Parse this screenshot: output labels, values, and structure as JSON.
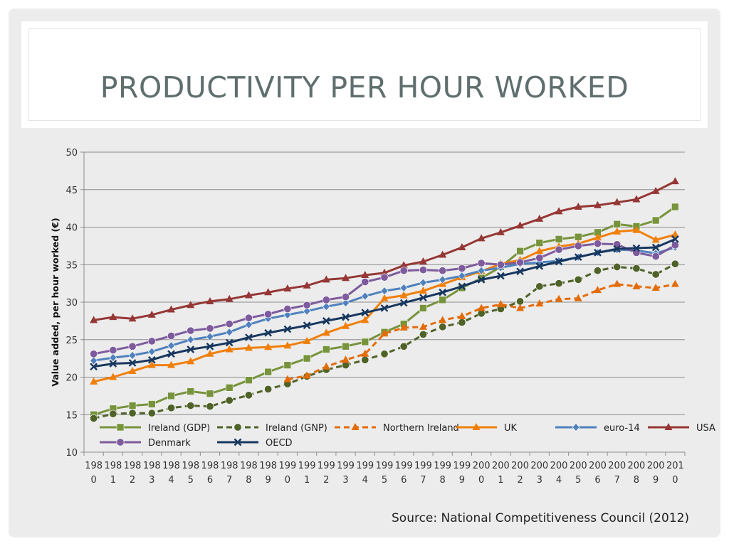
{
  "slide": {
    "title": "PRODUCTIVITY PER HOUR WORKED",
    "source": "Source: National Competitiveness Council (2012)"
  },
  "chart_data": {
    "type": "line",
    "title": "",
    "xlabel": "",
    "ylabel": "Value added, per hour worked (€)",
    "ylim": [
      10,
      50
    ],
    "yticks": [
      10,
      15,
      20,
      25,
      30,
      35,
      40,
      45,
      50
    ],
    "grid": true,
    "legend_position": "bottom-inside",
    "categories": [
      "1980",
      "1981",
      "1982",
      "1983",
      "1984",
      "1985",
      "1986",
      "1987",
      "1988",
      "1989",
      "1990",
      "1991",
      "1992",
      "1993",
      "1994",
      "1995",
      "1996",
      "1997",
      "1998",
      "1999",
      "2000",
      "2001",
      "2002",
      "2003",
      "2004",
      "2005",
      "2006",
      "2007",
      "2008",
      "2009",
      "2010"
    ],
    "series": [
      {
        "name": "Ireland (GDP)",
        "color": "#77933c",
        "dash": "solid",
        "marker": "square",
        "values": [
          15.0,
          15.8,
          16.2,
          16.4,
          17.5,
          18.1,
          17.8,
          18.6,
          19.6,
          20.7,
          21.6,
          22.5,
          23.7,
          24.1,
          24.7,
          26.0,
          27.1,
          29.2,
          30.3,
          31.9,
          33.2,
          34.7,
          36.8,
          37.9,
          38.4,
          38.7,
          39.3,
          40.4,
          40.1,
          40.9,
          42.7
        ]
      },
      {
        "name": "Ireland (GNP)",
        "color": "#4f6228",
        "dash": "dashed",
        "marker": "circle",
        "values": [
          14.5,
          15.1,
          15.2,
          15.2,
          15.9,
          16.2,
          16.1,
          16.9,
          17.6,
          18.4,
          19.1,
          20.1,
          21.0,
          21.6,
          22.3,
          23.1,
          24.1,
          25.7,
          26.7,
          27.3,
          28.5,
          29.1,
          30.1,
          32.1,
          32.5,
          33.0,
          34.2,
          34.7,
          34.5,
          33.7,
          35.1
        ]
      },
      {
        "name": "Northern Ireland",
        "color": "#e36c09",
        "dash": "dashed",
        "marker": "triangle",
        "values": [
          null,
          null,
          null,
          null,
          null,
          null,
          null,
          null,
          null,
          null,
          19.7,
          20.2,
          21.4,
          22.3,
          23.1,
          25.8,
          26.6,
          26.7,
          27.6,
          28.1,
          29.2,
          29.7,
          29.2,
          29.8,
          30.4,
          30.5,
          31.6,
          32.4,
          32.1,
          31.9,
          32.4
        ]
      },
      {
        "name": "UK",
        "color": "#f07f09",
        "dash": "solid",
        "marker": "triangle",
        "values": [
          19.4,
          20.0,
          20.8,
          21.6,
          21.6,
          22.1,
          23.1,
          23.7,
          23.9,
          24.0,
          24.2,
          24.8,
          25.9,
          26.8,
          27.6,
          30.5,
          30.9,
          31.5,
          32.4,
          33.3,
          34.1,
          35.1,
          35.6,
          36.8,
          37.4,
          37.8,
          38.6,
          39.4,
          39.6,
          38.3,
          39.0
        ]
      },
      {
        "name": "euro-14",
        "color": "#4f81bd",
        "dash": "solid",
        "marker": "diamond",
        "values": [
          22.2,
          22.6,
          22.9,
          23.4,
          24.2,
          25.0,
          25.4,
          26.0,
          27.0,
          27.8,
          28.3,
          28.8,
          29.4,
          29.9,
          30.8,
          31.5,
          31.9,
          32.6,
          33.0,
          33.5,
          34.2,
          34.6,
          35.1,
          35.3,
          35.5,
          36.0,
          36.6,
          37.0,
          36.9,
          36.5,
          37.3
        ]
      },
      {
        "name": "USA",
        "color": "#953735",
        "dash": "solid",
        "marker": "triangle",
        "values": [
          27.6,
          28.0,
          27.8,
          28.3,
          29.0,
          29.6,
          30.1,
          30.4,
          30.9,
          31.3,
          31.8,
          32.2,
          33.0,
          33.2,
          33.6,
          33.9,
          34.9,
          35.4,
          36.3,
          37.3,
          38.5,
          39.3,
          40.2,
          41.1,
          42.1,
          42.7,
          42.9,
          43.3,
          43.7,
          44.8,
          46.1
        ]
      },
      {
        "name": "Denmark",
        "color": "#7d5b9d",
        "dash": "solid",
        "marker": "circle",
        "values": [
          23.1,
          23.6,
          24.1,
          24.8,
          25.5,
          26.2,
          26.5,
          27.1,
          27.9,
          28.4,
          29.1,
          29.6,
          30.3,
          30.7,
          32.7,
          33.3,
          34.2,
          34.3,
          34.2,
          34.5,
          35.2,
          35.0,
          35.3,
          35.9,
          37.0,
          37.5,
          37.8,
          37.7,
          36.6,
          36.1,
          37.6
        ]
      },
      {
        "name": "OECD",
        "color": "#17375e",
        "dash": "solid",
        "marker": "x",
        "values": [
          21.4,
          21.8,
          21.9,
          22.3,
          23.1,
          23.7,
          24.1,
          24.6,
          25.3,
          25.9,
          26.4,
          26.9,
          27.5,
          28.0,
          28.6,
          29.2,
          29.9,
          30.6,
          31.3,
          32.1,
          33.0,
          33.5,
          34.1,
          34.8,
          35.4,
          36.0,
          36.6,
          37.1,
          37.2,
          37.3,
          38.4
        ]
      }
    ]
  }
}
